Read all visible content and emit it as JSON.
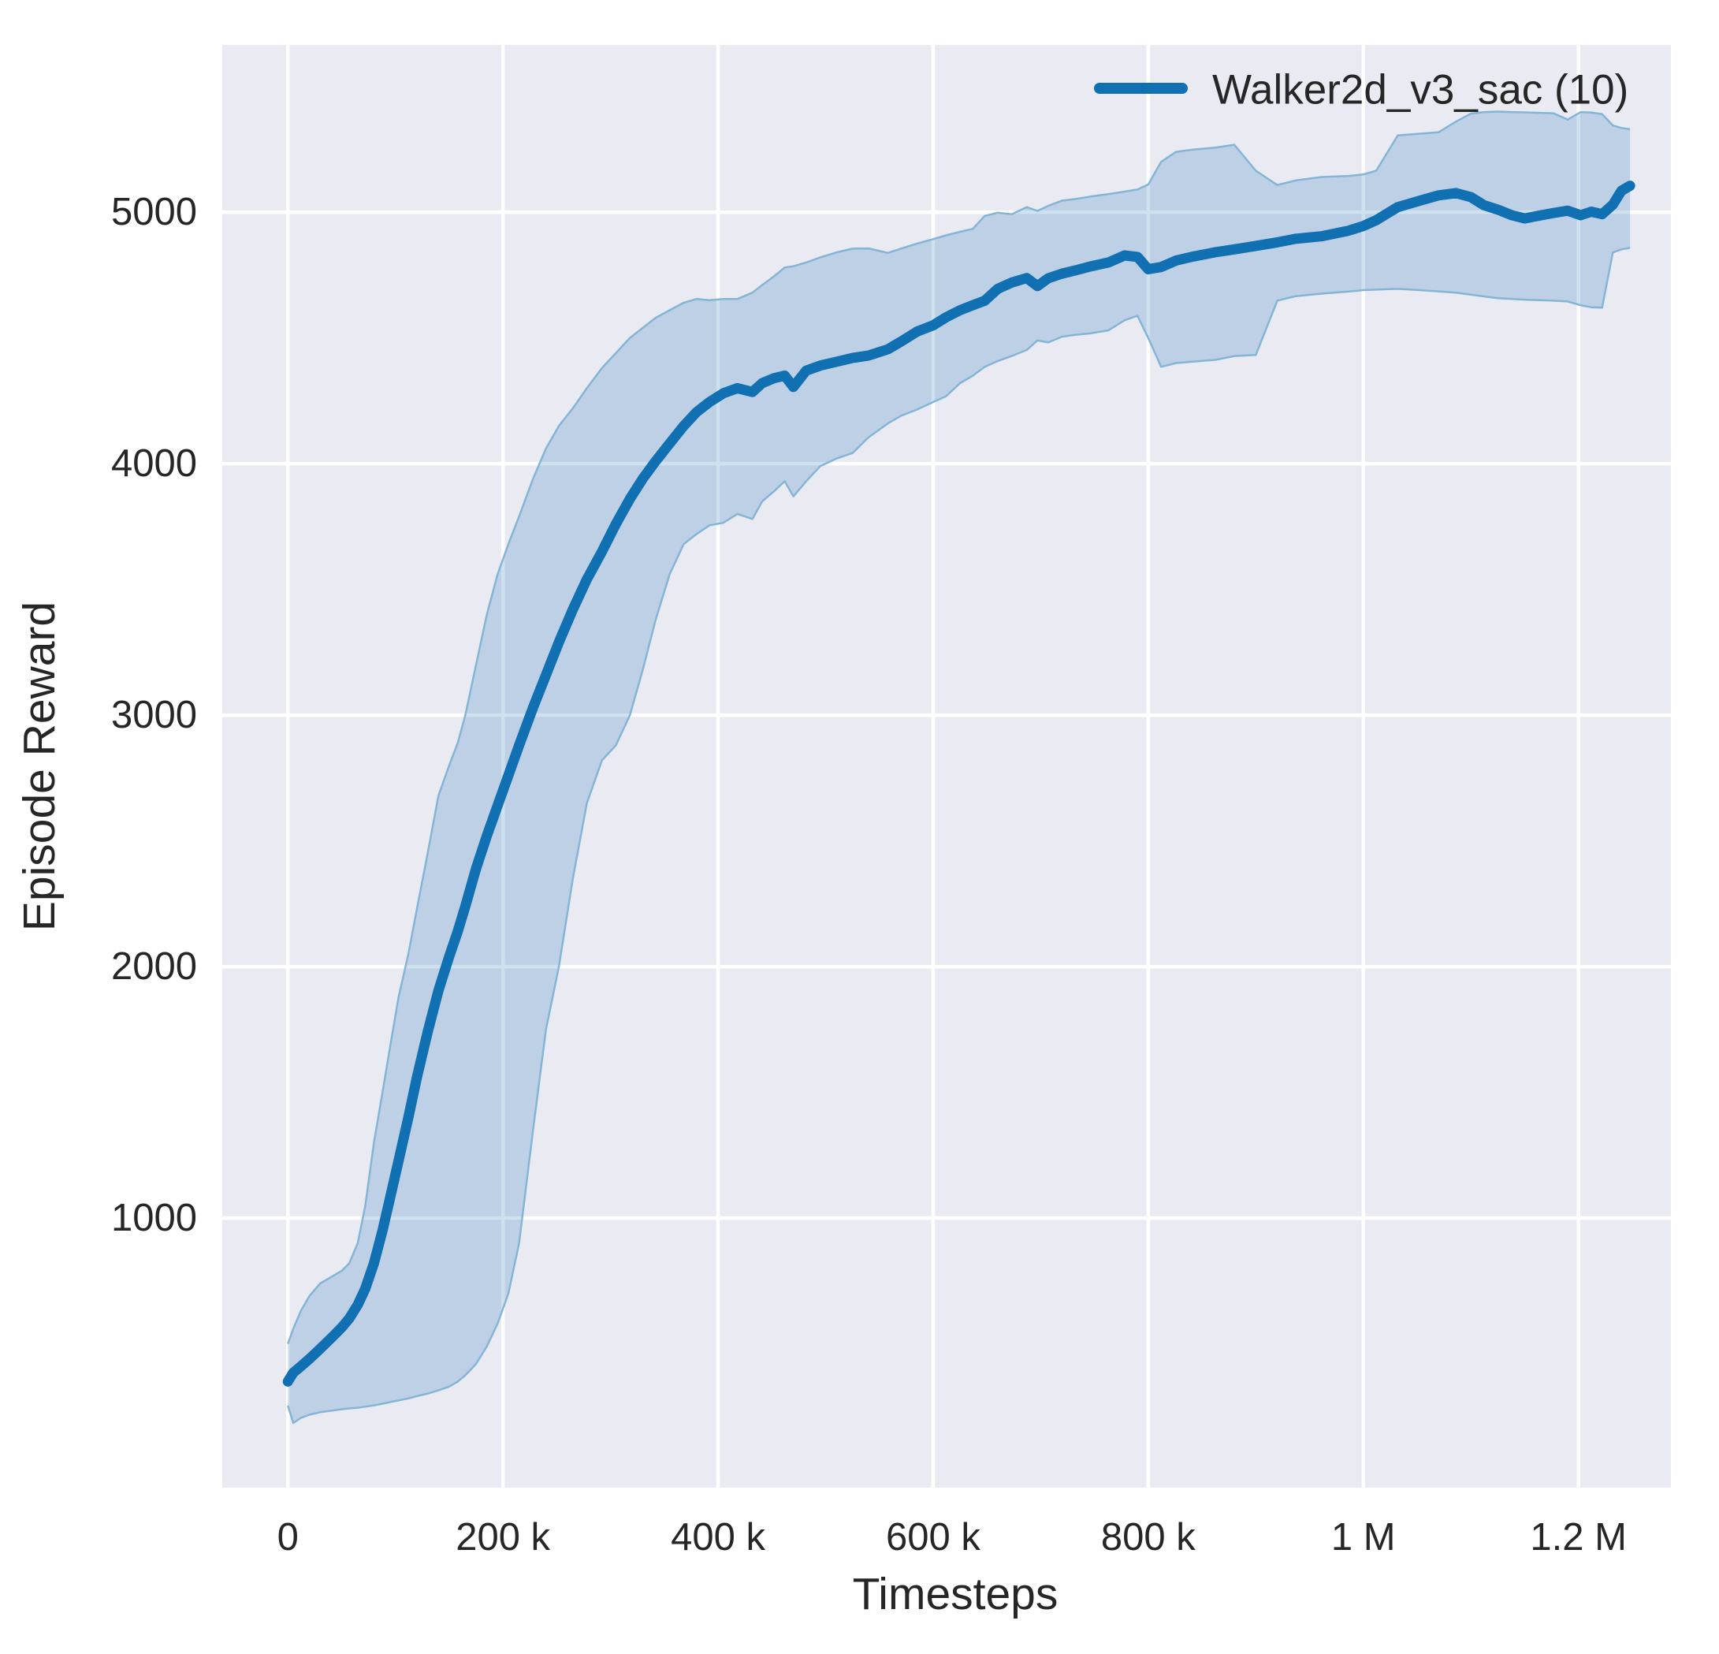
{
  "figure": {
    "background_color": "#ffffff",
    "panel_color": "#eaeaf2",
    "grid_color": "#ffffff",
    "line_color": "#1070b2",
    "band_fill_color": "#1f77b4",
    "band_fill_opacity": 0.22,
    "band_edge_color": "#85b5d6",
    "text_color": "#262626"
  },
  "legend": {
    "label": "Walker2d_v3_sac (10)"
  },
  "chart_data": {
    "type": "line",
    "title": "",
    "xlabel": "Timesteps",
    "ylabel": "Episode Reward",
    "grid": true,
    "legend_position": "upper right",
    "xlim_timesteps": [
      -61000,
      1286000
    ],
    "ylim_reward": [
      -72,
      5665
    ],
    "xticks": [
      {
        "value_k": 0,
        "label": "0"
      },
      {
        "value_k": 200,
        "label": "200 k"
      },
      {
        "value_k": 400,
        "label": "400 k"
      },
      {
        "value_k": 600,
        "label": "600 k"
      },
      {
        "value_k": 800,
        "label": "800 k"
      },
      {
        "value_k": 1000,
        "label": "1 M"
      },
      {
        "value_k": 1200,
        "label": "1.2 M"
      }
    ],
    "yticks": [
      {
        "value": 5000,
        "label": "5000"
      },
      {
        "value": 4000,
        "label": "4000"
      },
      {
        "value": 3000,
        "label": "3000"
      },
      {
        "value": 2000,
        "label": "2000"
      },
      {
        "value": 1000,
        "label": "1000"
      }
    ],
    "series": [
      {
        "name": "Walker2d_v3_sac (10)",
        "x_timesteps_k": [
          0,
          5,
          12,
          20,
          30,
          42,
          50,
          57,
          65,
          72,
          80,
          88,
          95,
          103,
          112,
          120,
          130,
          140,
          150,
          158,
          165,
          175,
          185,
          195,
          205,
          215,
          228,
          240,
          252,
          265,
          278,
          292,
          305,
          318,
          330,
          342,
          355,
          368,
          380,
          392,
          405,
          418,
          432,
          441,
          452,
          462,
          470,
          482,
          495,
          510,
          525,
          540,
          558,
          570,
          585,
          600,
          612,
          625,
          637,
          648,
          660,
          673,
          687,
          697,
          707,
          720,
          732,
          746,
          763,
          778,
          790,
          800,
          812,
          826,
          840,
          863,
          880,
          900,
          920,
          937,
          961,
          986,
          1000,
          1012,
          1032,
          1052,
          1070,
          1086,
          1100,
          1112,
          1125,
          1138,
          1150,
          1163,
          1177,
          1190,
          1202,
          1212,
          1222,
          1232,
          1240,
          1248
        ],
        "mean_reward": [
          350,
          385,
          410,
          440,
          480,
          530,
          565,
          600,
          655,
          720,
          820,
          950,
          1080,
          1230,
          1400,
          1560,
          1740,
          1905,
          2040,
          2140,
          2240,
          2390,
          2520,
          2640,
          2760,
          2880,
          3030,
          3160,
          3290,
          3420,
          3540,
          3650,
          3760,
          3860,
          3940,
          4010,
          4080,
          4150,
          4205,
          4245,
          4280,
          4300,
          4285,
          4320,
          4340,
          4350,
          4305,
          4370,
          4390,
          4405,
          4420,
          4430,
          4455,
          4485,
          4525,
          4550,
          4582,
          4610,
          4630,
          4648,
          4695,
          4720,
          4738,
          4706,
          4737,
          4756,
          4768,
          4784,
          4800,
          4828,
          4822,
          4773,
          4782,
          4808,
          4822,
          4841,
          4852,
          4866,
          4880,
          4894,
          4904,
          4926,
          4945,
          4968,
          5020,
          5045,
          5067,
          5076,
          5060,
          5028,
          5010,
          4988,
          4975,
          4986,
          4997,
          5006,
          4988,
          5002,
          4992,
          5030,
          5085,
          5105
        ],
        "band_upper": [
          500,
          560,
          630,
          690,
          740,
          770,
          790,
          820,
          900,
          1050,
          1300,
          1500,
          1680,
          1880,
          2050,
          2230,
          2450,
          2680,
          2800,
          2890,
          3000,
          3200,
          3400,
          3560,
          3680,
          3790,
          3940,
          4060,
          4150,
          4220,
          4300,
          4380,
          4440,
          4500,
          4540,
          4580,
          4610,
          4640,
          4655,
          4650,
          4655,
          4655,
          4680,
          4710,
          4745,
          4780,
          4785,
          4800,
          4820,
          4840,
          4855,
          4856,
          4838,
          4855,
          4875,
          4893,
          4908,
          4922,
          4934,
          4985,
          4998,
          4992,
          5020,
          5005,
          5025,
          5046,
          5052,
          5062,
          5072,
          5082,
          5090,
          5110,
          5200,
          5240,
          5248,
          5257,
          5268,
          5165,
          5108,
          5126,
          5140,
          5144,
          5150,
          5165,
          5305,
          5312,
          5318,
          5360,
          5392,
          5398,
          5400,
          5398,
          5397,
          5395,
          5393,
          5368,
          5398,
          5396,
          5390,
          5345,
          5335,
          5330
        ],
        "band_lower": [
          255,
          185,
          205,
          218,
          228,
          235,
          240,
          243,
          246,
          250,
          255,
          262,
          268,
          275,
          283,
          292,
          302,
          315,
          330,
          350,
          375,
          420,
          490,
          580,
          700,
          900,
          1350,
          1750,
          2000,
          2350,
          2650,
          2820,
          2880,
          3000,
          3180,
          3380,
          3560,
          3680,
          3720,
          3755,
          3765,
          3800,
          3780,
          3850,
          3890,
          3930,
          3870,
          3930,
          3990,
          4020,
          4042,
          4105,
          4160,
          4190,
          4215,
          4245,
          4268,
          4320,
          4350,
          4385,
          4408,
          4428,
          4452,
          4490,
          4482,
          4505,
          4512,
          4518,
          4530,
          4570,
          4588,
          4500,
          4385,
          4400,
          4405,
          4413,
          4428,
          4432,
          4648,
          4666,
          4676,
          4684,
          4690,
          4692,
          4695,
          4690,
          4685,
          4680,
          4672,
          4665,
          4658,
          4655,
          4652,
          4650,
          4648,
          4645,
          4630,
          4622,
          4620,
          4840,
          4852,
          4858
        ]
      }
    ]
  }
}
